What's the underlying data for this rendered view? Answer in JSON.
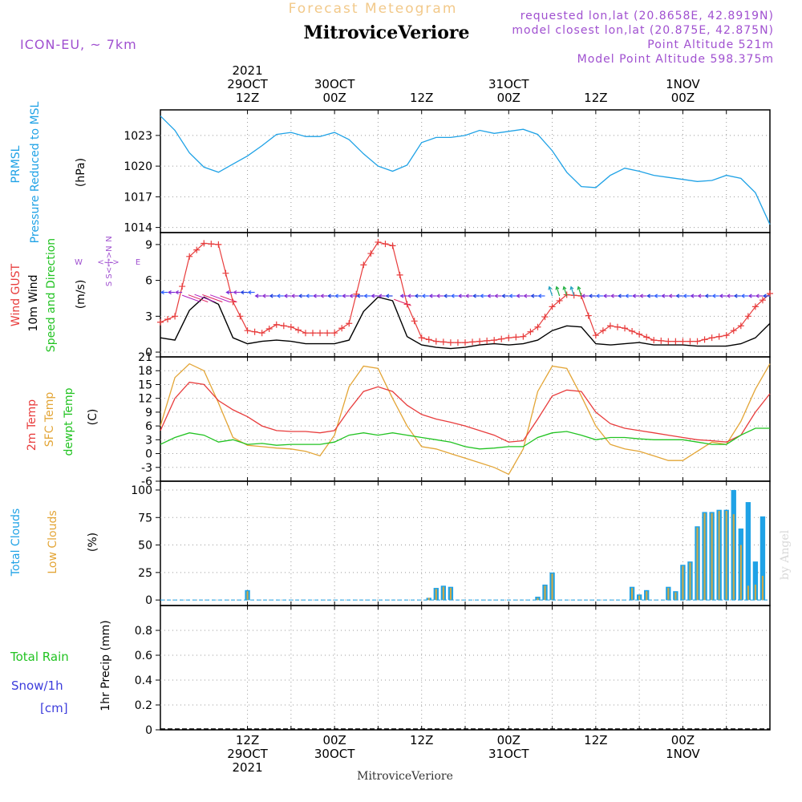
{
  "header": {
    "supertitle": "Forecast Meteogram",
    "title": "MitroviceVeriore",
    "model": "ICON-EU, ~ 7km",
    "requested": "requested lon,lat (20.8658E, 42.8919N)",
    "closest": "model closest lon,lat (20.875E, 42.875N)",
    "point_alt": "Point Altitude 521m",
    "model_alt": "Model Point Altitude 598.375m",
    "footer": "MitroviceVeriore",
    "watermark": "by Angel"
  },
  "colors": {
    "pressure": "#1fa2e6",
    "gust": "#e83c3c",
    "wind": "#000000",
    "temp2m": "#e83c3c",
    "sfc": "#e3a536",
    "dew": "#22c322",
    "total_cloud": "#1fa2e6",
    "low_cloud": "#c9a94a",
    "purple": "#a050d0",
    "snow": "#3c3cdc"
  },
  "time_axis": {
    "top_labels": [
      {
        "h": 12,
        "lines": [
          "2021",
          "29OCT",
          "12Z"
        ]
      },
      {
        "h": 24,
        "lines": [
          "30OCT",
          "00Z"
        ]
      },
      {
        "h": 36,
        "lines": [
          "12Z"
        ]
      },
      {
        "h": 48,
        "lines": [
          "31OCT",
          "00Z"
        ]
      },
      {
        "h": 60,
        "lines": [
          "12Z"
        ]
      },
      {
        "h": 72,
        "lines": [
          "1NOV",
          "00Z"
        ]
      }
    ],
    "bottom_labels": [
      {
        "h": 12,
        "lines": [
          "12Z",
          "29OCT",
          "2021"
        ]
      },
      {
        "h": 24,
        "lines": [
          "00Z",
          "30OCT"
        ]
      },
      {
        "h": 36,
        "lines": [
          "12Z"
        ]
      },
      {
        "h": 48,
        "lines": [
          "00Z",
          "31OCT"
        ]
      },
      {
        "h": 60,
        "lines": [
          "12Z"
        ]
      },
      {
        "h": 72,
        "lines": [
          "00Z",
          "1NOV"
        ]
      }
    ],
    "grid_hours": [
      12,
      18,
      24,
      30,
      36,
      42,
      48,
      54,
      60,
      66,
      72,
      78
    ]
  },
  "panel_labels": {
    "pressure": {
      "line1": "PRMSL",
      "line2": "Pressure Reduced to MSL",
      "unit": "(hPa)"
    },
    "wind": {
      "gust": "Wind GUST",
      "wind10": "10m Wind",
      "dir": "Speed and Direction",
      "unit": "(m/s)",
      "compass_n": "N",
      "compass_s": "S",
      "compass_w": "W",
      "compass_e": "E",
      "compass_ns": "S<-|->N",
      "compass_we": "<-|->"
    },
    "temp": {
      "t2m": "2m Temp",
      "sfc": "SFC Temp",
      "dew": "dewpt Temp",
      "unit": "(C)"
    },
    "cloud": {
      "total": "Total Clouds",
      "low": "Low Clouds",
      "unit": "(%)"
    },
    "precip": {
      "rain": "Total  Rain",
      "snow": "Snow/1h",
      "snow_unit": "[cm]",
      "axis": "1hr Precip (mm)"
    }
  },
  "chart_data": [
    {
      "type": "line",
      "title": "PRMSL Pressure Reduced to MSL",
      "ylabel": "(hPa)",
      "ylim": [
        1013.5,
        1025.5
      ],
      "yticks": [
        "1014",
        "1017",
        "1020",
        "1023"
      ],
      "x_hours": [
        0,
        2,
        4,
        6,
        8,
        10,
        12,
        14,
        16,
        18,
        20,
        22,
        24,
        26,
        28,
        30,
        32,
        34,
        36,
        38,
        40,
        42,
        44,
        46,
        48,
        50,
        52,
        54,
        56,
        58,
        60,
        62,
        64,
        66,
        68,
        70,
        72,
        74,
        76,
        78,
        80,
        82,
        84
      ],
      "series": [
        {
          "name": "PRMSL",
          "values": [
            1024.9,
            1023.5,
            1021.3,
            1019.9,
            1019.4,
            1020.2,
            1021.0,
            1022.0,
            1023.1,
            1023.3,
            1022.9,
            1022.9,
            1023.3,
            1022.6,
            1021.2,
            1020.0,
            1019.5,
            1020.1,
            1022.3,
            1022.8,
            1022.8,
            1023.0,
            1023.5,
            1023.2,
            1023.4,
            1023.6,
            1023.1,
            1021.5,
            1019.4,
            1018.0,
            1017.9,
            1019.1,
            1019.8,
            1019.5,
            1019.1,
            1018.9,
            1018.7,
            1018.5,
            1018.6,
            1019.1,
            1018.8,
            1017.4,
            1014.3
          ]
        }
      ]
    },
    {
      "type": "line",
      "title": "Wind GUST / 10m Wind Speed and Direction",
      "ylabel": "(m/s)",
      "ylim": [
        -0.4,
        10.0
      ],
      "yticks": [
        "0",
        "3",
        "6",
        "9"
      ],
      "x_hours": [
        0,
        2,
        4,
        6,
        8,
        10,
        12,
        14,
        16,
        18,
        20,
        22,
        24,
        26,
        28,
        30,
        32,
        34,
        36,
        38,
        40,
        42,
        44,
        46,
        48,
        50,
        52,
        54,
        56,
        58,
        60,
        62,
        64,
        66,
        68,
        70,
        72,
        74,
        76,
        78,
        80,
        82,
        84
      ],
      "series": [
        {
          "name": "Wind GUST",
          "values": [
            2.5,
            3.0,
            8.0,
            9.1,
            9.0,
            4.2,
            1.8,
            1.6,
            2.3,
            2.1,
            1.6,
            1.6,
            1.6,
            2.4,
            7.3,
            9.2,
            8.9,
            4.0,
            1.2,
            0.9,
            0.8,
            0.8,
            0.9,
            1.0,
            1.2,
            1.3,
            2.1,
            3.8,
            4.8,
            4.7,
            1.4,
            2.2,
            2.0,
            1.5,
            1.0,
            0.9,
            0.9,
            0.9,
            1.2,
            1.4,
            2.2,
            3.8,
            4.9
          ]
        },
        {
          "name": "10m Wind",
          "values": [
            1.2,
            1.0,
            3.5,
            4.6,
            4.0,
            1.2,
            0.7,
            0.9,
            1.0,
            0.9,
            0.7,
            0.7,
            0.7,
            1.0,
            3.4,
            4.6,
            4.3,
            1.3,
            0.6,
            0.4,
            0.3,
            0.4,
            0.6,
            0.7,
            0.6,
            0.7,
            1.0,
            1.8,
            2.2,
            2.1,
            0.7,
            0.6,
            0.7,
            0.8,
            0.6,
            0.6,
            0.6,
            0.5,
            0.5,
            0.5,
            0.7,
            1.2,
            2.4
          ]
        }
      ]
    },
    {
      "type": "line",
      "title": "2m Temp / SFC Temp / dewpt Temp",
      "ylabel": "(C)",
      "ylim": [
        -6,
        21
      ],
      "yticks": [
        "-6",
        "-3",
        "0",
        "3",
        "6",
        "9",
        "12",
        "15",
        "18",
        "21"
      ],
      "x_hours": [
        0,
        2,
        4,
        6,
        8,
        10,
        12,
        14,
        16,
        18,
        20,
        22,
        24,
        26,
        28,
        30,
        32,
        34,
        36,
        38,
        40,
        42,
        44,
        46,
        48,
        50,
        52,
        54,
        56,
        58,
        60,
        62,
        64,
        66,
        68,
        70,
        72,
        74,
        76,
        78,
        80,
        82,
        84
      ],
      "series": [
        {
          "name": "2m Temp",
          "values": [
            5.0,
            12.0,
            15.5,
            15.0,
            11.5,
            9.5,
            8.0,
            6.0,
            5.0,
            4.8,
            4.8,
            4.5,
            5.0,
            9.5,
            13.5,
            14.5,
            13.5,
            10.5,
            8.5,
            7.5,
            6.8,
            6.0,
            5.0,
            4.0,
            2.5,
            2.8,
            7.5,
            12.5,
            13.8,
            13.5,
            9.0,
            6.5,
            5.5,
            5.0,
            4.5,
            4.0,
            3.5,
            3.0,
            2.8,
            2.5,
            4.0,
            9.0,
            13.0
          ]
        },
        {
          "name": "SFC Temp",
          "values": [
            6.0,
            16.5,
            19.5,
            18.0,
            11.0,
            3.5,
            1.8,
            1.5,
            1.2,
            1.0,
            0.5,
            -0.5,
            4.0,
            14.5,
            19.0,
            18.5,
            12.0,
            6.0,
            1.5,
            1.0,
            0.0,
            -1.0,
            -2.0,
            -3.0,
            -4.5,
            1.0,
            13.5,
            19.0,
            18.5,
            12.5,
            6.0,
            2.0,
            1.0,
            0.5,
            -0.5,
            -1.5,
            -1.5,
            0.5,
            2.5,
            2.0,
            7.0,
            14.0,
            19.5
          ]
        },
        {
          "name": "dewpt Temp",
          "values": [
            2.0,
            3.5,
            4.5,
            4.0,
            2.5,
            3.0,
            2.0,
            2.2,
            1.8,
            2.0,
            2.0,
            2.0,
            2.5,
            4.0,
            4.5,
            4.0,
            4.5,
            4.0,
            3.5,
            3.0,
            2.5,
            1.5,
            1.0,
            1.2,
            1.5,
            1.5,
            3.5,
            4.5,
            4.8,
            4.0,
            3.0,
            3.5,
            3.5,
            3.2,
            3.0,
            3.0,
            3.0,
            2.5,
            2.0,
            2.0,
            4.0,
            5.5,
            5.5
          ]
        }
      ]
    },
    {
      "type": "bar",
      "title": "Total Clouds / Low Clouds",
      "ylabel": "(%)",
      "ylim": [
        -5,
        108
      ],
      "yticks": [
        "0",
        "25",
        "50",
        "75",
        "100"
      ],
      "x_hours": [
        12,
        37,
        38,
        39,
        40,
        52,
        53,
        54,
        65,
        66,
        67,
        70,
        71,
        72,
        73,
        74,
        75,
        76,
        77,
        78,
        79,
        80,
        81,
        82,
        83,
        84
      ],
      "series": [
        {
          "name": "Total Clouds",
          "values": [
            9,
            2,
            11,
            13,
            12,
            3,
            14,
            25,
            12,
            5,
            9,
            12,
            8,
            32,
            35,
            67,
            80,
            80,
            82,
            82,
            100,
            65,
            89,
            35,
            76,
            0
          ]
        },
        {
          "name": "Low Clouds",
          "values": [
            8,
            2,
            10,
            12,
            11,
            2,
            13,
            24,
            11,
            4,
            8,
            11,
            7,
            31,
            34,
            66,
            79,
            79,
            81,
            81,
            78,
            50,
            13,
            14,
            22,
            0
          ]
        }
      ]
    },
    {
      "type": "line",
      "title": "Total Rain / Snow/1h",
      "ylabel": "1hr Precip (mm)",
      "ylim": [
        0,
        1.0
      ],
      "yticks": [
        "0",
        "0.2",
        "0.4",
        "0.6",
        "0.8"
      ],
      "x_hours": [
        0,
        84
      ],
      "series": [
        {
          "name": "Total Rain",
          "values": [
            0,
            0
          ]
        }
      ]
    }
  ]
}
